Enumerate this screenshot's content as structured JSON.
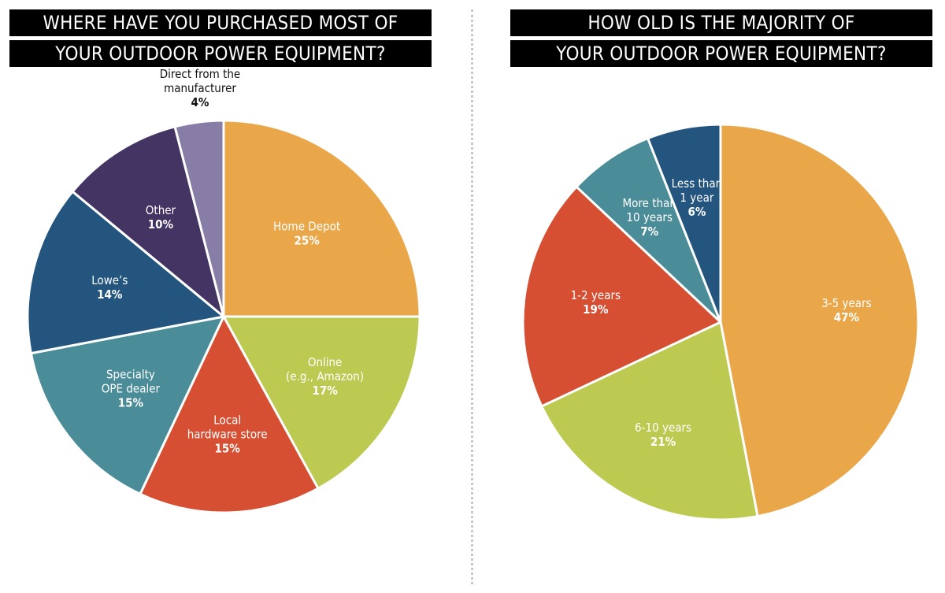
{
  "chart_data": [
    {
      "type": "pie",
      "title_lines": [
        "WHERE HAVE YOU PURCHASED MOST OF",
        "YOUR OUTDOOR POWER EQUIPMENT?"
      ],
      "slices": [
        {
          "label": [
            "Home Depot"
          ],
          "value": 25,
          "value_label": "25%",
          "color": "#E9A74A"
        },
        {
          "label": [
            "Online",
            "(e.g., Amazon)"
          ],
          "value": 17,
          "value_label": "17%",
          "color": "#BCCA51"
        },
        {
          "label": [
            "Local",
            "hardware store"
          ],
          "value": 15,
          "value_label": "15%",
          "color": "#D64F33"
        },
        {
          "label": [
            "Specialty",
            "OPE dealer"
          ],
          "value": 15,
          "value_label": "15%",
          "color": "#4A8D98"
        },
        {
          "label": [
            "Lowe’s"
          ],
          "value": 14,
          "value_label": "14%",
          "color": "#23557F"
        },
        {
          "label": [
            "Other"
          ],
          "value": 10,
          "value_label": "10%",
          "color": "#433463"
        },
        {
          "label": [
            "Direct from the",
            "manufacturer"
          ],
          "value": 4,
          "value_label": "4%",
          "color": "#877DA6",
          "label_outside": true
        }
      ]
    },
    {
      "type": "pie",
      "title_lines": [
        "HOW OLD IS THE MAJORITY OF",
        "YOUR OUTDOOR POWER EQUIPMENT?"
      ],
      "slices": [
        {
          "label": [
            "3-5 years"
          ],
          "value": 47,
          "value_label": "47%",
          "color": "#E9A74A"
        },
        {
          "label": [
            "6-10 years"
          ],
          "value": 21,
          "value_label": "21%",
          "color": "#BCCA51"
        },
        {
          "label": [
            "1-2 years"
          ],
          "value": 19,
          "value_label": "19%",
          "color": "#D64F33"
        },
        {
          "label": [
            "More than",
            "10 years"
          ],
          "value": 7,
          "value_label": "7%",
          "color": "#4A8D98"
        },
        {
          "label": [
            "Less than",
            "1 year"
          ],
          "value": 6,
          "value_label": "6%",
          "color": "#23557F"
        }
      ]
    }
  ]
}
